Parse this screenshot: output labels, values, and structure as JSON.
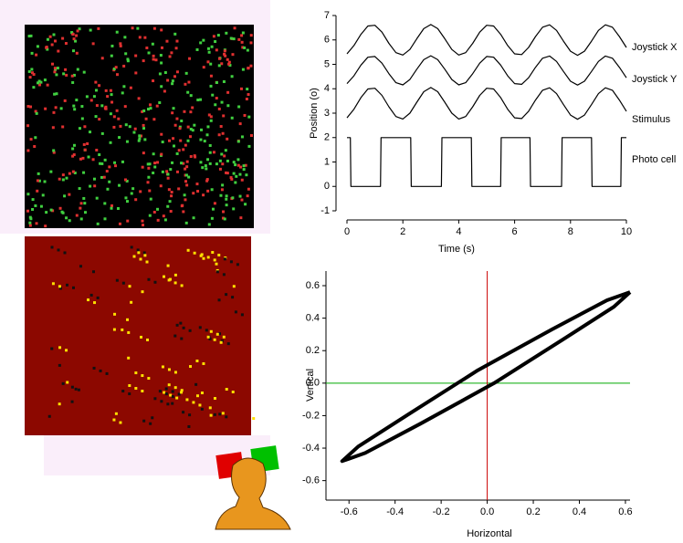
{
  "chart_data": [
    {
      "type": "line",
      "ylabel": "Position (o)",
      "xlabel": "Time (s)",
      "xlim": [
        0,
        10
      ],
      "xticks": [
        0,
        2,
        4,
        6,
        8,
        10
      ],
      "ylim": [
        -1,
        7
      ],
      "yticks": [
        -1,
        0,
        1,
        2,
        3,
        4,
        5,
        6,
        7
      ],
      "x": [
        0,
        0.25,
        0.5,
        0.75,
        1,
        1.25,
        1.5,
        1.75,
        2,
        2.25,
        2.5,
        2.75,
        3,
        3.25,
        3.5,
        3.75,
        4,
        4.25,
        4.5,
        4.75,
        5,
        5.25,
        5.5,
        5.75,
        6,
        6.25,
        6.5,
        6.75,
        7,
        7.25,
        7.5,
        7.75,
        8,
        8.25,
        8.5,
        8.75,
        9,
        9.25,
        9.5,
        9.75,
        10
      ],
      "series": [
        {
          "name": "Joystick X",
          "color": "#000000",
          "values": [
            5.43,
            5.77,
            6.23,
            6.57,
            6.6,
            6.32,
            5.86,
            5.48,
            5.38,
            5.61,
            6.05,
            6.46,
            6.63,
            6.46,
            6.05,
            5.61,
            5.38,
            5.48,
            5.86,
            6.32,
            6.6,
            6.57,
            6.23,
            5.77,
            5.43,
            5.4,
            5.69,
            6.14,
            6.52,
            6.62,
            6.39,
            5.95,
            5.54,
            5.37,
            5.54,
            5.95,
            6.39,
            6.62,
            6.52,
            6.14,
            5.69
          ]
        },
        {
          "name": "Joystick Y",
          "color": "#000000",
          "values": [
            4.21,
            4.53,
            4.97,
            5.29,
            5.32,
            5.05,
            4.62,
            4.25,
            4.16,
            4.38,
            4.8,
            5.19,
            5.35,
            5.19,
            4.8,
            4.38,
            4.16,
            4.25,
            4.62,
            5.05,
            5.32,
            5.29,
            4.97,
            4.53,
            4.21,
            4.18,
            4.45,
            4.88,
            5.25,
            5.34,
            5.12,
            4.71,
            4.31,
            4.15,
            4.31,
            4.71,
            5.12,
            5.34,
            5.25,
            4.88,
            4.45
          ]
        },
        {
          "name": "Stimulus",
          "color": "#000000",
          "values": [
            2.81,
            3.16,
            3.64,
            3.99,
            4.02,
            3.73,
            3.26,
            2.86,
            2.76,
            3.0,
            3.45,
            3.88,
            4.05,
            3.88,
            3.45,
            3.0,
            2.76,
            2.86,
            3.26,
            3.73,
            4.02,
            3.99,
            3.64,
            3.16,
            2.81,
            2.78,
            3.08,
            3.54,
            3.94,
            4.04,
            3.8,
            3.35,
            2.92,
            2.75,
            2.92,
            3.35,
            3.8,
            4.04,
            3.94,
            3.54,
            3.08
          ]
        },
        {
          "name": "Photo cell",
          "color": "#000000",
          "x": [
            0,
            0.12,
            0.14,
            1.2,
            1.22,
            2.28,
            2.3,
            3.38,
            3.4,
            4.45,
            4.47,
            5.5,
            5.52,
            6.55,
            6.57,
            7.68,
            7.7,
            8.75,
            8.77,
            9.8,
            9.82,
            10
          ],
          "values": [
            2,
            2,
            0,
            0,
            2,
            2,
            0,
            0,
            2,
            2,
            0,
            0,
            2,
            2,
            0,
            0,
            2,
            2,
            0,
            0,
            2,
            2
          ]
        }
      ]
    },
    {
      "type": "line",
      "xlabel": "Horizontal",
      "ylabel": "Vertical",
      "xlim": [
        -0.7,
        0.62
      ],
      "xticks": [
        -0.6,
        -0.4,
        -0.2,
        {
          "value": 0,
          "label": "0.0"
        },
        0.2,
        0.4,
        0.6
      ],
      "ylim": [
        -0.72,
        0.69
      ],
      "yticks": [
        -0.6,
        -0.4,
        -0.2,
        {
          "value": 0,
          "label": "0.0"
        },
        0.2,
        0.4,
        0.6
      ],
      "zero_lines": {
        "x_color": "#cc0000",
        "y_color": "#00aa00"
      },
      "series": [
        {
          "color": "#000000",
          "x": [
            0.62,
            0.52,
            0.28,
            -0.04,
            -0.34,
            -0.56,
            -0.63,
            -0.53,
            -0.29,
            0.03,
            0.33,
            0.55,
            0.62
          ],
          "values": [
            0.56,
            0.51,
            0.33,
            0.08,
            -0.19,
            -0.39,
            -0.48,
            -0.43,
            -0.25,
            0.0,
            0.27,
            0.47,
            0.56
          ]
        }
      ]
    }
  ]
}
